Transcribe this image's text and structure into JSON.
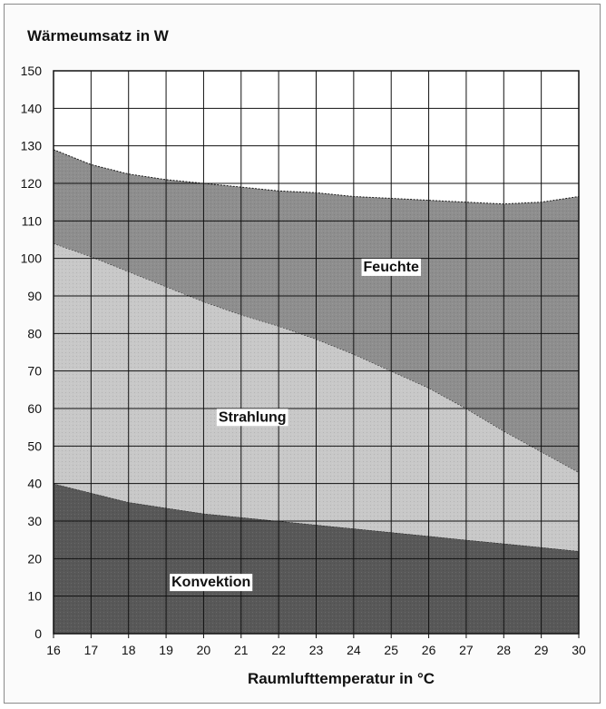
{
  "chart_data": {
    "type": "area",
    "title": "Wärmeumsatz in W",
    "xlabel": "Raumlufttemperatur in °C",
    "ylabel": "",
    "xlim": [
      16,
      30
    ],
    "ylim": [
      0,
      150
    ],
    "x": [
      16,
      17,
      18,
      19,
      20,
      21,
      22,
      23,
      24,
      25,
      26,
      27,
      28,
      29,
      30
    ],
    "x_ticks": [
      16,
      17,
      18,
      19,
      20,
      21,
      22,
      23,
      24,
      25,
      26,
      27,
      28,
      29,
      30
    ],
    "y_ticks": [
      0,
      10,
      20,
      30,
      40,
      50,
      60,
      70,
      80,
      90,
      100,
      110,
      120,
      130,
      140,
      150
    ],
    "grid": true,
    "series": [
      {
        "name": "Konvektion",
        "values": [
          40,
          37.5,
          35,
          33.5,
          32,
          31,
          30,
          29,
          28,
          27,
          26,
          25,
          24,
          23,
          22
        ]
      },
      {
        "name": "Strahlung",
        "values": [
          104,
          100.5,
          96.5,
          92.5,
          88.5,
          85,
          82,
          78.5,
          74.5,
          70,
          65.5,
          60,
          54,
          48.5,
          43
        ]
      },
      {
        "name": "Feuchte",
        "values": [
          129,
          125,
          122.5,
          121,
          120,
          119,
          118,
          117.5,
          116.5,
          116,
          115.5,
          115,
          114.5,
          115,
          116.5
        ]
      }
    ],
    "colors": {
      "Konvektion": "#585858",
      "Strahlung": "#c8c8c8",
      "Feuchte": "#8e8e8e",
      "background": "#ffffff",
      "grid": "#111111"
    }
  }
}
